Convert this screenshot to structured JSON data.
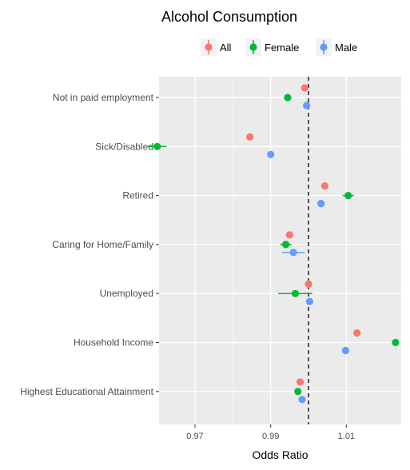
{
  "chart_data": {
    "type": "scatter",
    "title": "Alcohol Consumption",
    "xlabel": "Odds Ratio",
    "ylabel": "",
    "xlim": [
      0.9605,
      1.0245
    ],
    "x_ticks": [
      0.97,
      0.99,
      1.01
    ],
    "x_tick_labels": [
      "0.97",
      "0.99",
      "1.01"
    ],
    "reference_line": 1.0,
    "categories": [
      "Not in paid employment",
      "Sick/Disabled",
      "Retired",
      "Caring for Home/Family",
      "Unemployed",
      "Household Income",
      "Highest Educational Attainment"
    ],
    "grid": true,
    "legend_position": "top",
    "series": [
      {
        "name": "All",
        "color": "#F8766D",
        "values": [
          0.999,
          0.9845,
          1.0043,
          0.995,
          1.0,
          1.0128,
          0.9978
        ],
        "ci_low": [
          0.9985,
          0.984,
          1.0038,
          0.994,
          0.9995,
          1.0124,
          0.9974
        ],
        "ci_high": [
          0.9995,
          0.985,
          1.0048,
          0.996,
          1.0005,
          1.0132,
          0.9982
        ]
      },
      {
        "name": "Female",
        "color": "#00BA38",
        "values": [
          0.9945,
          0.96,
          1.0105,
          0.994,
          0.9965,
          1.023,
          0.9972
        ],
        "ci_low": [
          0.9935,
          0.9575,
          1.009,
          0.9925,
          0.992,
          1.0225,
          0.9964
        ],
        "ci_high": [
          0.9955,
          0.9625,
          1.012,
          0.9955,
          1.001,
          1.0235,
          0.998
        ]
      },
      {
        "name": "Male",
        "color": "#619CFF",
        "values": [
          0.9995,
          0.99,
          1.0033,
          0.996,
          1.0003,
          1.0098,
          0.9983
        ],
        "ci_low": [
          0.999,
          0.9895,
          1.0028,
          0.993,
          0.9998,
          1.0094,
          0.9979
        ],
        "ci_high": [
          1.0,
          0.9905,
          1.0038,
          0.999,
          1.0008,
          1.0102,
          0.9987
        ]
      }
    ]
  }
}
